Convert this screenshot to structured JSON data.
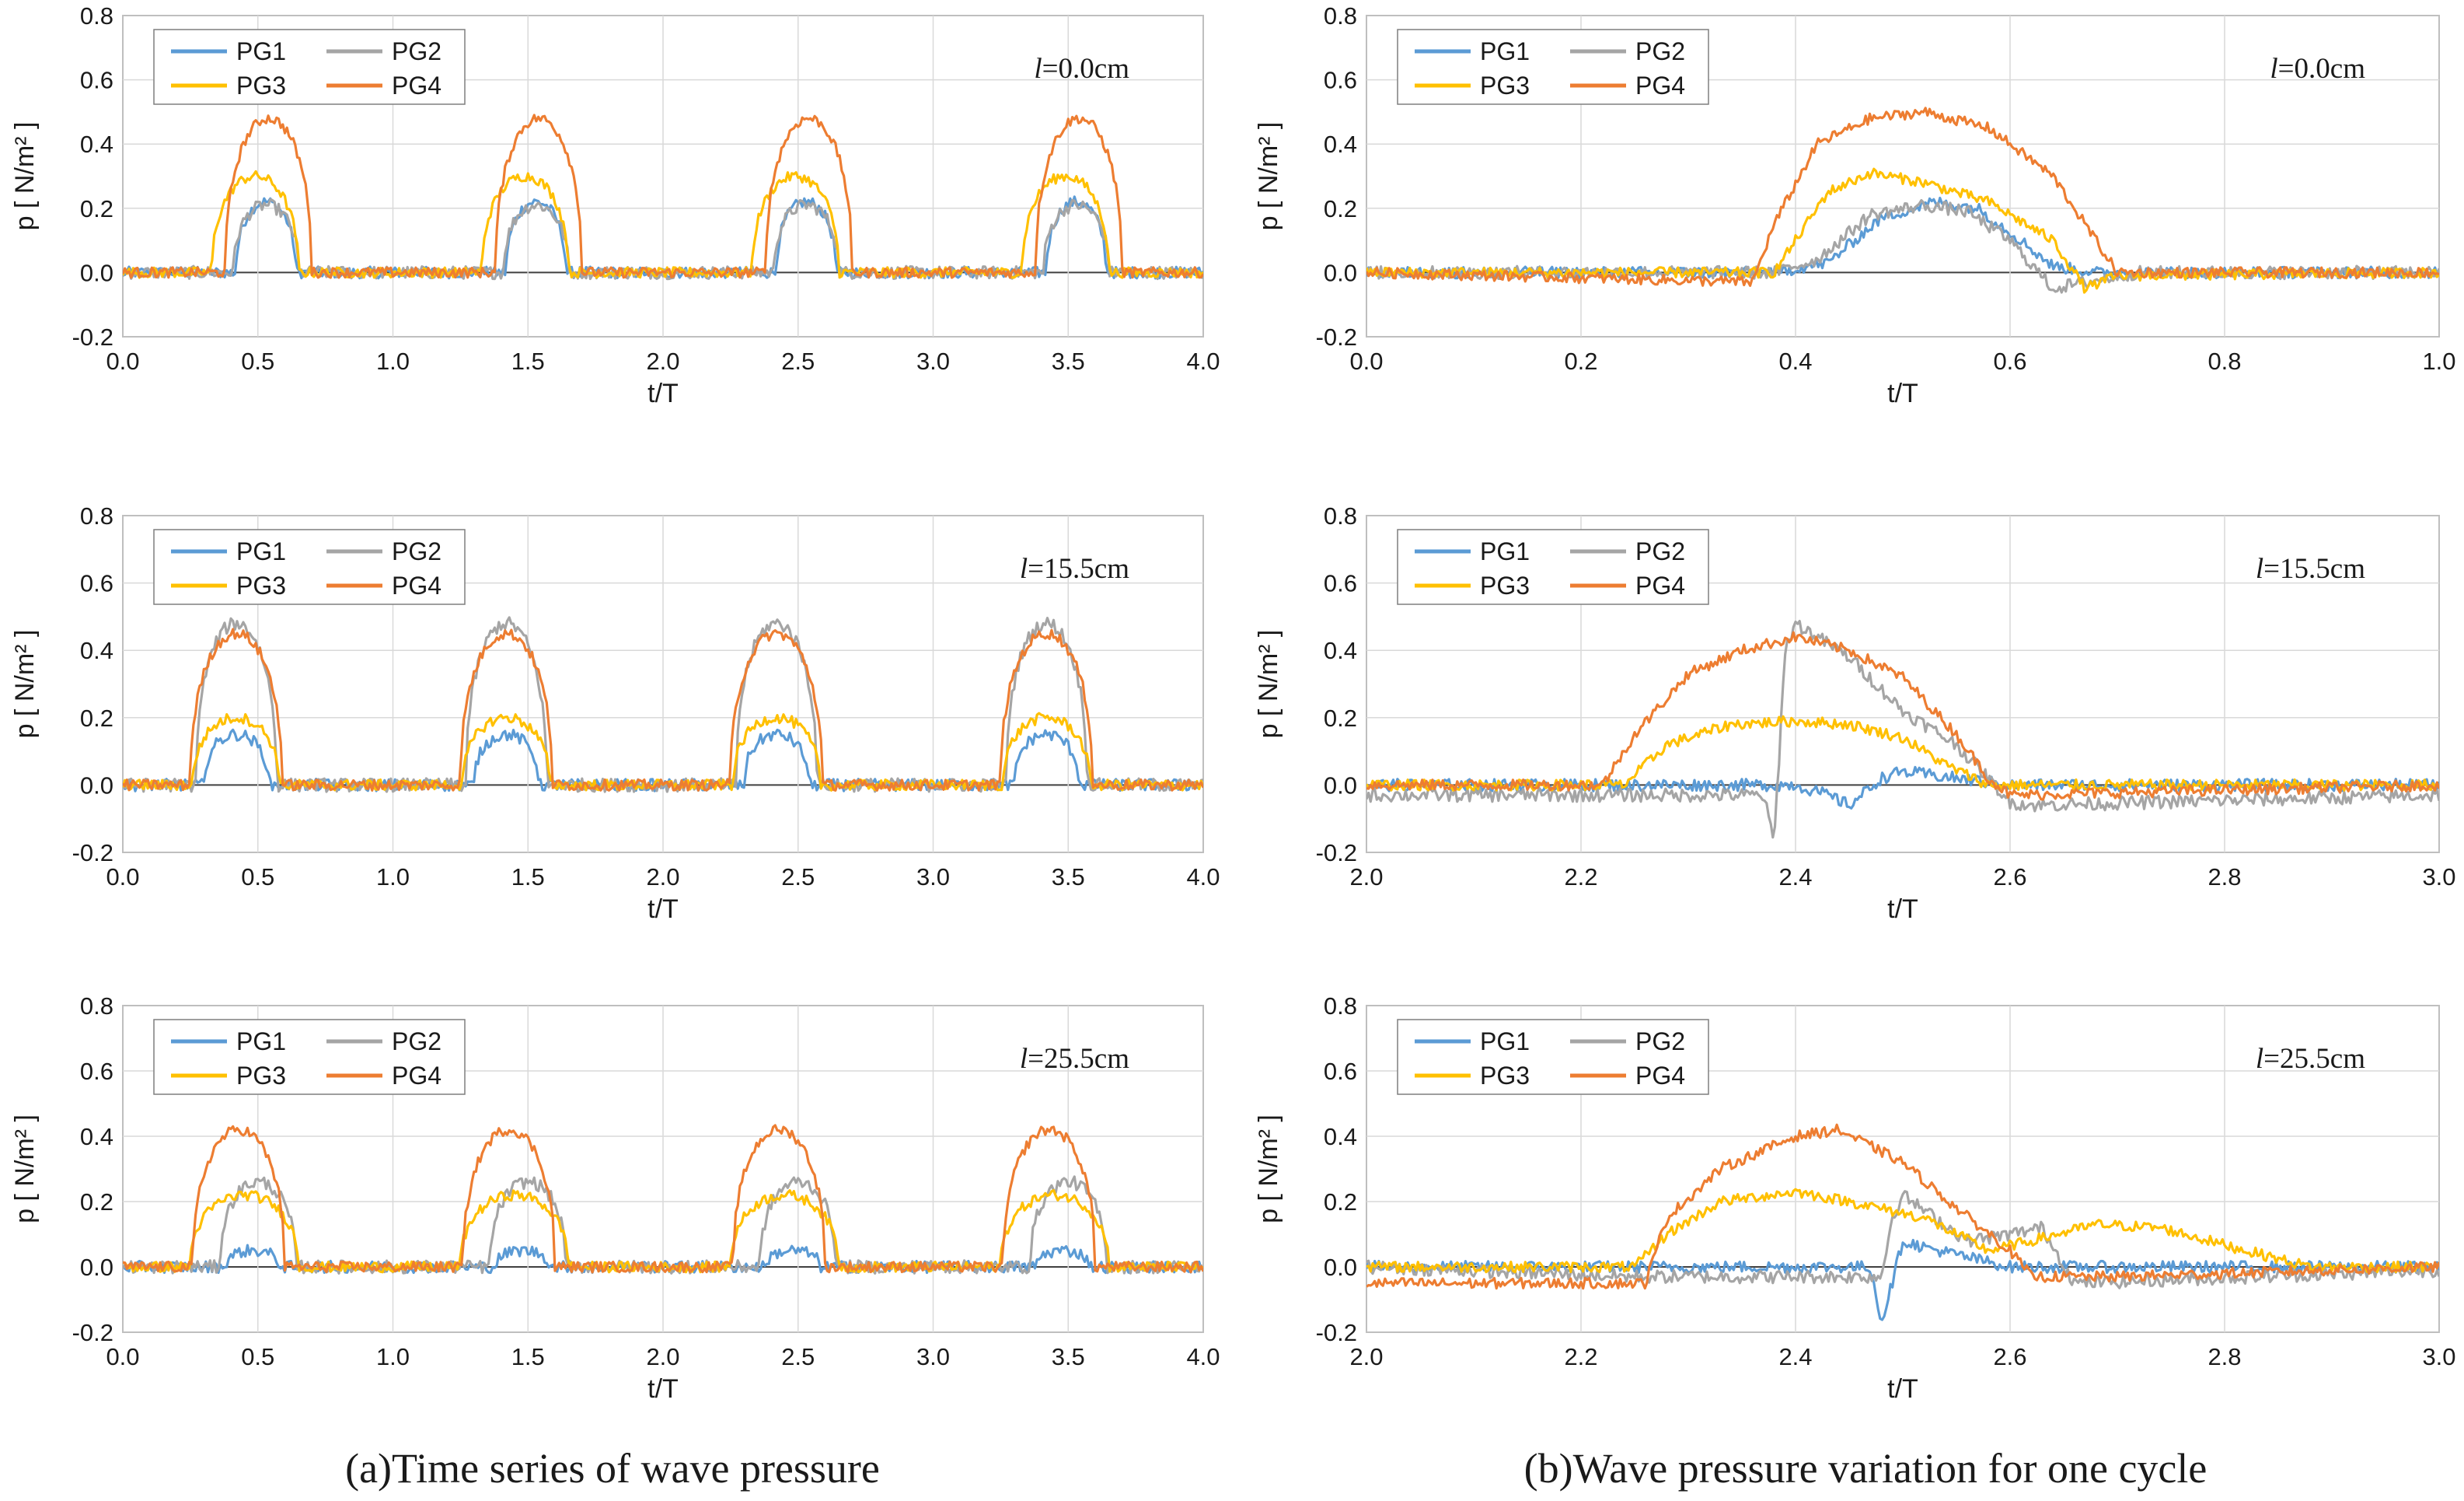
{
  "figure": {
    "caption_left": "(a)Time series of wave pressure",
    "caption_right": "(b)Wave pressure variation for one cycle"
  },
  "colors": {
    "PG1": "#5b9bd5",
    "PG2": "#a5a5a5",
    "PG3": "#ffc000",
    "PG4": "#ed7d31"
  },
  "chart_data": [
    {
      "type": "line",
      "panel": "a1",
      "annotation_symbol": "l",
      "annotation_value": "=0.0cm",
      "xlabel": "t/T",
      "ylabel": "p [ N/m² ]",
      "xlim": [
        0,
        4
      ],
      "ylim": [
        -0.2,
        0.8
      ],
      "xticks": [
        "0.0",
        "0.5",
        "1.0",
        "1.5",
        "2.0",
        "2.5",
        "3.0",
        "3.5",
        "4.0"
      ],
      "yticks": [
        "-0.2",
        "0.0",
        "0.2",
        "0.4",
        "0.6",
        "0.8"
      ],
      "legend": [
        "PG1",
        "PG2",
        "PG3",
        "PG4"
      ],
      "legend_position": "top-left",
      "grid": true,
      "series": [
        {
          "name": "PG1",
          "pulse_centers": [
            0.53,
            1.53,
            2.53,
            3.53
          ],
          "peak": 0.22,
          "half_width": 0.11
        },
        {
          "name": "PG2",
          "pulse_centers": [
            0.53,
            1.53,
            2.53,
            3.53
          ],
          "peak": 0.21,
          "half_width": 0.12
        },
        {
          "name": "PG3",
          "pulse_centers": [
            0.49,
            1.49,
            2.49,
            3.49
          ],
          "peak": 0.3,
          "half_width": 0.16
        },
        {
          "name": "PG4",
          "pulse_centers": [
            0.54,
            1.54,
            2.54,
            3.54
          ],
          "peak": 0.48,
          "half_width": 0.16
        }
      ]
    },
    {
      "type": "line",
      "panel": "a2",
      "annotation_symbol": "l",
      "annotation_value": "=15.5cm",
      "xlabel": "t/T",
      "ylabel": "p [ N/m² ]",
      "xlim": [
        0,
        4
      ],
      "ylim": [
        -0.2,
        0.8
      ],
      "xticks": [
        "0.0",
        "0.5",
        "1.0",
        "1.5",
        "2.0",
        "2.5",
        "3.0",
        "3.5",
        "4.0"
      ],
      "yticks": [
        "-0.2",
        "0.0",
        "0.2",
        "0.4",
        "0.6",
        "0.8"
      ],
      "legend": [
        "PG1",
        "PG2",
        "PG3",
        "PG4"
      ],
      "legend_position": "top-left",
      "grid": true,
      "series": [
        {
          "name": "PG1",
          "pulse_centers": [
            0.42,
            1.42,
            2.42,
            3.42
          ],
          "peak": 0.15,
          "half_width": 0.12
        },
        {
          "name": "PG2",
          "pulse_centers": [
            0.42,
            1.42,
            2.42,
            3.42
          ],
          "peak": 0.48,
          "half_width": 0.15
        },
        {
          "name": "PG3",
          "pulse_centers": [
            0.42,
            1.42,
            2.42,
            3.42
          ],
          "peak": 0.2,
          "half_width": 0.16
        },
        {
          "name": "PG4",
          "pulse_centers": [
            0.42,
            1.42,
            2.42,
            3.42
          ],
          "peak": 0.45,
          "half_width": 0.17
        }
      ]
    },
    {
      "type": "line",
      "panel": "a3",
      "annotation_symbol": "l",
      "annotation_value": "=25.5cm",
      "xlabel": "t/T",
      "ylabel": "p [ N/m² ]",
      "xlim": [
        0,
        4
      ],
      "ylim": [
        -0.2,
        0.8
      ],
      "xticks": [
        "0.0",
        "0.5",
        "1.0",
        "1.5",
        "2.0",
        "2.5",
        "3.0",
        "3.5",
        "4.0"
      ],
      "yticks": [
        "-0.2",
        "0.0",
        "0.2",
        "0.4",
        "0.6",
        "0.8"
      ],
      "legend": [
        "PG1",
        "PG2",
        "PG3",
        "PG4"
      ],
      "legend_position": "top-left",
      "grid": true,
      "series": [
        {
          "name": "PG1",
          "pulse_centers": [
            0.48,
            1.48,
            2.48,
            3.48
          ],
          "peak": 0.05,
          "half_width": 0.1
        },
        {
          "name": "PG2",
          "pulse_centers": [
            0.5,
            1.5,
            2.5,
            3.5
          ],
          "peak": 0.26,
          "half_width": 0.14
        },
        {
          "name": "PG3",
          "pulse_centers": [
            0.45,
            1.45,
            2.45,
            3.45
          ],
          "peak": 0.22,
          "half_width": 0.2
        },
        {
          "name": "PG4",
          "pulse_centers": [
            0.43,
            1.43,
            2.43,
            3.43
          ],
          "peak": 0.42,
          "half_width": 0.17
        }
      ]
    },
    {
      "type": "line",
      "panel": "b1",
      "annotation_symbol": "l",
      "annotation_value": "=0.0cm",
      "xlabel": "t/T",
      "ylabel": "p [ N/m² ]",
      "xlim": [
        0.0,
        1.0
      ],
      "ylim": [
        -0.2,
        0.8
      ],
      "xticks": [
        "0.0",
        "0.2",
        "0.4",
        "0.6",
        "0.8",
        "1.0"
      ],
      "yticks": [
        "-0.2",
        "0.0",
        "0.2",
        "0.4",
        "0.6",
        "0.8"
      ],
      "legend": [
        "PG1",
        "PG2",
        "PG3",
        "PG4"
      ],
      "legend_position": "top-left",
      "grid": true,
      "series": [
        {
          "name": "PG1",
          "x": [
            0.0,
            0.38,
            0.43,
            0.48,
            0.53,
            0.57,
            0.61,
            0.64,
            0.68,
            1.0
          ],
          "y": [
            0.0,
            0.0,
            0.03,
            0.17,
            0.22,
            0.2,
            0.1,
            0.02,
            0.0,
            0.0
          ]
        },
        {
          "name": "PG2",
          "x": [
            0.0,
            0.38,
            0.42,
            0.47,
            0.52,
            0.56,
            0.6,
            0.64,
            0.67,
            0.72,
            1.0
          ],
          "y": [
            0.0,
            0.0,
            0.04,
            0.18,
            0.21,
            0.19,
            0.1,
            -0.05,
            -0.03,
            0.0,
            0.0
          ]
        },
        {
          "name": "PG3",
          "x": [
            0.0,
            0.38,
            0.4,
            0.43,
            0.47,
            0.52,
            0.58,
            0.64,
            0.67,
            0.7,
            1.0
          ],
          "y": [
            0.0,
            0.0,
            0.1,
            0.25,
            0.31,
            0.28,
            0.22,
            0.1,
            -0.05,
            -0.01,
            0.0
          ]
        },
        {
          "name": "PG4",
          "x": [
            0.0,
            0.36,
            0.38,
            0.42,
            0.47,
            0.52,
            0.58,
            0.64,
            0.67,
            0.7,
            1.0
          ],
          "y": [
            0.0,
            -0.03,
            0.15,
            0.4,
            0.48,
            0.5,
            0.45,
            0.3,
            0.15,
            0.0,
            0.0
          ]
        }
      ]
    },
    {
      "type": "line",
      "panel": "b2",
      "annotation_symbol": "l",
      "annotation_value": "=15.5cm",
      "xlabel": "t/T",
      "ylabel": "p [ N/m² ]",
      "xlim": [
        2.0,
        3.0
      ],
      "ylim": [
        -0.2,
        0.8
      ],
      "xticks": [
        "2.0",
        "2.2",
        "2.4",
        "2.6",
        "2.8",
        "3.0"
      ],
      "yticks": [
        "-0.2",
        "0.0",
        "0.2",
        "0.4",
        "0.6",
        "0.8"
      ],
      "legend": [
        "PG1",
        "PG2",
        "PG3",
        "PG4"
      ],
      "legend_position": "top-left",
      "grid": true,
      "series": [
        {
          "name": "PG1",
          "x": [
            2.0,
            2.4,
            2.43,
            2.45,
            2.48,
            2.5,
            2.6,
            3.0
          ],
          "y": [
            0.0,
            0.0,
            -0.03,
            -0.06,
            0.02,
            0.04,
            0.0,
            0.0
          ]
        },
        {
          "name": "PG2",
          "x": [
            2.0,
            2.37,
            2.38,
            2.385,
            2.39,
            2.4,
            2.45,
            2.5,
            2.55,
            2.6,
            2.62,
            3.0
          ],
          "y": [
            -0.03,
            -0.03,
            -0.17,
            0.1,
            0.4,
            0.48,
            0.38,
            0.22,
            0.12,
            -0.05,
            -0.06,
            -0.03
          ]
        },
        {
          "name": "PG3",
          "x": [
            2.0,
            2.24,
            2.28,
            2.34,
            2.4,
            2.45,
            2.5,
            2.54,
            2.58,
            3.0
          ],
          "y": [
            0.0,
            0.0,
            0.12,
            0.18,
            0.19,
            0.18,
            0.14,
            0.06,
            0.0,
            0.0
          ]
        },
        {
          "name": "PG4",
          "x": [
            2.0,
            2.22,
            2.25,
            2.3,
            2.35,
            2.4,
            2.45,
            2.5,
            2.55,
            2.58,
            2.6,
            3.0
          ],
          "y": [
            0.0,
            0.0,
            0.15,
            0.33,
            0.4,
            0.44,
            0.4,
            0.32,
            0.15,
            0.02,
            -0.03,
            0.0
          ]
        }
      ]
    },
    {
      "type": "line",
      "panel": "b3",
      "annotation_symbol": "l",
      "annotation_value": "=25.5cm",
      "xlabel": "t/T",
      "ylabel": "p [ N/m² ]",
      "xlim": [
        2.0,
        3.0
      ],
      "ylim": [
        -0.2,
        0.8
      ],
      "xticks": [
        "2.0",
        "2.2",
        "2.4",
        "2.6",
        "2.8",
        "3.0"
      ],
      "yticks": [
        "-0.2",
        "0.0",
        "0.2",
        "0.4",
        "0.6",
        "0.8"
      ],
      "legend": [
        "PG1",
        "PG2",
        "PG3",
        "PG4"
      ],
      "legend_position": "top-left",
      "grid": true,
      "series": [
        {
          "name": "PG1",
          "x": [
            2.0,
            2.25,
            2.47,
            2.48,
            2.49,
            2.5,
            2.52,
            2.6,
            3.0
          ],
          "y": [
            0.0,
            0.0,
            0.0,
            -0.17,
            -0.05,
            0.08,
            0.06,
            0.0,
            0.0
          ]
        },
        {
          "name": "PG2",
          "x": [
            2.0,
            2.25,
            2.48,
            2.49,
            2.5,
            2.53,
            2.56,
            2.6,
            2.63,
            2.66,
            3.0
          ],
          "y": [
            0.0,
            -0.03,
            -0.03,
            0.15,
            0.22,
            0.15,
            0.08,
            0.1,
            0.12,
            -0.05,
            -0.01
          ]
        },
        {
          "name": "PG3",
          "x": [
            2.0,
            2.25,
            2.28,
            2.33,
            2.4,
            2.45,
            2.52,
            2.58,
            2.62,
            2.68,
            2.74,
            2.82,
            2.88,
            3.0
          ],
          "y": [
            0.0,
            0.0,
            0.1,
            0.2,
            0.23,
            0.2,
            0.15,
            0.05,
            0.08,
            0.13,
            0.12,
            0.05,
            0.0,
            0.0
          ]
        },
        {
          "name": "PG4",
          "x": [
            2.0,
            2.26,
            2.28,
            2.33,
            2.4,
            2.44,
            2.5,
            2.55,
            2.6,
            2.62,
            2.7,
            3.0
          ],
          "y": [
            -0.05,
            -0.05,
            0.15,
            0.3,
            0.4,
            0.42,
            0.32,
            0.18,
            0.05,
            -0.03,
            -0.03,
            0.0
          ]
        }
      ]
    }
  ]
}
